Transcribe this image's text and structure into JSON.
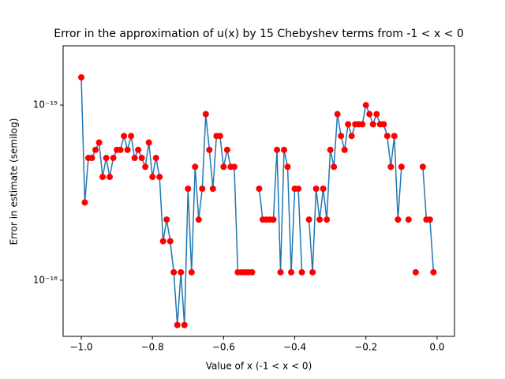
{
  "chart_data": {
    "type": "line",
    "log_y": true,
    "title": "Error in the approximation of u(x) by 15 Chebyshev terms from -1 < x < 0",
    "x_label": "Value of x (-1 < x < 0)",
    "y_label": "Error in estimate (semilog)",
    "x": [
      -1.0,
      -0.99,
      -0.98,
      -0.97,
      -0.96,
      -0.95,
      -0.94,
      -0.93,
      -0.92,
      -0.91,
      -0.9,
      -0.89,
      -0.88,
      -0.87,
      -0.86,
      -0.85,
      -0.84,
      -0.83,
      -0.82,
      -0.81,
      -0.8,
      -0.79,
      -0.78,
      -0.77,
      -0.76,
      -0.75,
      -0.74,
      -0.73,
      -0.72,
      -0.71,
      -0.7,
      -0.69,
      -0.68,
      -0.67,
      -0.66,
      -0.65,
      -0.64,
      -0.63,
      -0.62,
      -0.61,
      -0.6,
      -0.59,
      -0.58,
      -0.57,
      -0.56,
      -0.55,
      -0.54,
      -0.53,
      -0.52,
      -0.51,
      -0.5,
      -0.49,
      -0.48,
      -0.47,
      -0.46,
      -0.45,
      -0.44,
      -0.43,
      -0.42,
      -0.41,
      -0.4,
      -0.39,
      -0.38,
      -0.37,
      -0.36,
      -0.35,
      -0.34,
      -0.33,
      -0.32,
      -0.31,
      -0.3,
      -0.29,
      -0.28,
      -0.27,
      -0.26,
      -0.25,
      -0.24,
      -0.23,
      -0.22,
      -0.21,
      -0.2,
      -0.19,
      -0.18,
      -0.17,
      -0.16,
      -0.15,
      -0.14,
      -0.13,
      -0.12,
      -0.11,
      -0.1,
      -0.09,
      -0.08,
      -0.07,
      -0.06,
      -0.05,
      -0.04,
      -0.03,
      -0.02,
      -0.01
    ],
    "series": [
      {
        "color": "#1f77b4",
        "marker_color": "#ff0000",
        "values": [
          1.44e-15,
          2.78e-16,
          4.99e-16,
          4.99e-16,
          5.55e-16,
          6.11e-16,
          3.89e-16,
          4.99e-16,
          3.89e-16,
          4.99e-16,
          5.55e-16,
          5.55e-16,
          6.66e-16,
          5.55e-16,
          6.66e-16,
          4.99e-16,
          5.55e-16,
          4.99e-16,
          4.44e-16,
          6.11e-16,
          3.89e-16,
          4.99e-16,
          3.89e-16,
          1.67e-16,
          2.22e-16,
          1.67e-16,
          1.11e-16,
          5.55e-17,
          1.11e-16,
          5.55e-17,
          3.33e-16,
          1.11e-16,
          4.44e-16,
          2.22e-16,
          3.33e-16,
          8.88e-16,
          5.55e-16,
          3.33e-16,
          6.66e-16,
          6.66e-16,
          4.44e-16,
          5.55e-16,
          4.44e-16,
          4.44e-16,
          1.11e-16,
          1.11e-16,
          1.11e-16,
          1.11e-16,
          1.11e-16,
          null,
          3.33e-16,
          2.22e-16,
          2.22e-16,
          2.22e-16,
          2.22e-16,
          5.55e-16,
          1.11e-16,
          5.55e-16,
          4.44e-16,
          1.11e-16,
          3.33e-16,
          3.33e-16,
          1.11e-16,
          null,
          2.22e-16,
          1.11e-16,
          3.33e-16,
          2.22e-16,
          3.33e-16,
          2.22e-16,
          5.55e-16,
          4.44e-16,
          8.88e-16,
          6.66e-16,
          5.55e-16,
          7.77e-16,
          6.66e-16,
          7.77e-16,
          7.77e-16,
          7.77e-16,
          9.99e-16,
          8.88e-16,
          7.77e-16,
          8.88e-16,
          7.77e-16,
          7.77e-16,
          6.66e-16,
          4.44e-16,
          6.66e-16,
          2.22e-16,
          4.44e-16,
          null,
          2.22e-16,
          null,
          1.11e-16,
          null,
          4.44e-16,
          2.22e-16,
          2.22e-16,
          1.11e-16
        ]
      }
    ],
    "xlim": [
      -1.051,
      0.049
    ],
    "ylim": [
      4.78e-17,
      2.18e-15
    ],
    "xticks": [
      {
        "value": -1.0,
        "label": "−1.0"
      },
      {
        "value": -0.8,
        "label": "−0.8"
      },
      {
        "value": -0.6,
        "label": "−0.6"
      },
      {
        "value": -0.4,
        "label": "−0.4"
      },
      {
        "value": -0.2,
        "label": "−0.2"
      },
      {
        "value": 0,
        "label": "0.0"
      }
    ],
    "yticks": [
      {
        "value": 1e-16,
        "label": "10⁻¹⁶"
      },
      {
        "value": 1e-15,
        "label": "10⁻¹⁵"
      }
    ]
  }
}
